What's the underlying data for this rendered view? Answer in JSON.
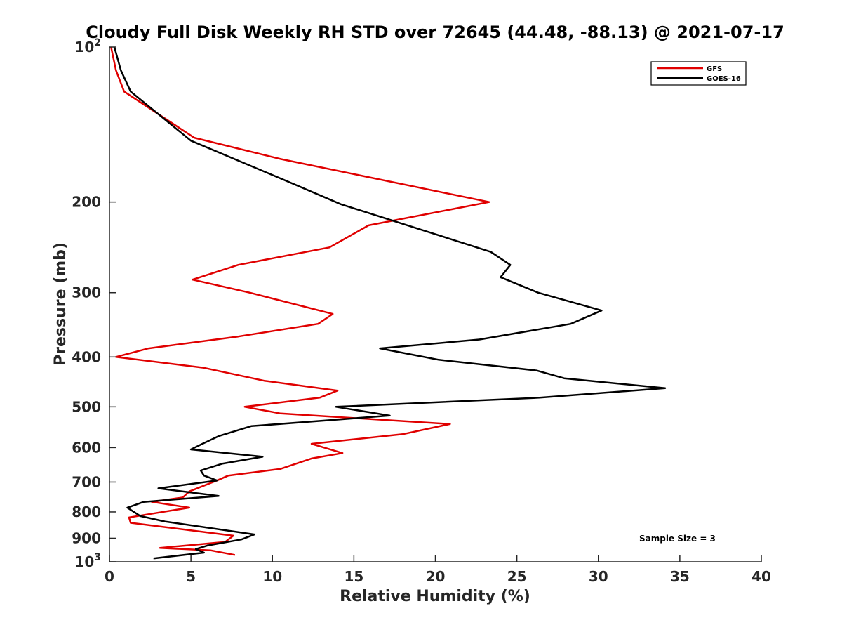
{
  "chart_data": {
    "type": "line",
    "title": "Cloudy Full Disk Weekly RH STD over 72645 (44.48, -88.13) @ 2021-07-17",
    "xlabel": "Relative Humidity (%)",
    "ylabel": "Pressure (mb)",
    "xlim": [
      0,
      40
    ],
    "ylim": [
      100,
      1000
    ],
    "yscale": "log",
    "y_reversed": true,
    "grid": false,
    "legend_position": "top-right",
    "x_ticks": [
      0,
      5,
      10,
      15,
      20,
      25,
      30,
      35,
      40
    ],
    "x_tick_labels": [
      "0",
      "5",
      "10",
      "15",
      "20",
      "25",
      "30",
      "35",
      "40"
    ],
    "y_ticks": [
      100,
      200,
      300,
      400,
      500,
      600,
      700,
      800,
      900,
      1000
    ],
    "y_tick_labels": [
      {
        "base": "10",
        "exp": "2"
      },
      {
        "base": "200",
        "exp": ""
      },
      {
        "base": "300",
        "exp": ""
      },
      {
        "base": "400",
        "exp": ""
      },
      {
        "base": "500",
        "exp": ""
      },
      {
        "base": "600",
        "exp": ""
      },
      {
        "base": "700",
        "exp": ""
      },
      {
        "base": "800",
        "exp": ""
      },
      {
        "base": "900",
        "exp": ""
      },
      {
        "base": "10",
        "exp": "3"
      }
    ],
    "annotation": "Sample Size = 3",
    "series": [
      {
        "name": "GFS",
        "color": "#e00000",
        "x": [
          0.1,
          0.4,
          0.9,
          5.2,
          10.5,
          23.3,
          15.9,
          13.5,
          7.9,
          5.1,
          8.6,
          13.7,
          12.8,
          7.9,
          2.4,
          0.4,
          5.8,
          9.5,
          14.0,
          12.9,
          8.3,
          10.5,
          20.9,
          18.0,
          12.4,
          14.3,
          12.4,
          10.5,
          7.3,
          6.6,
          4.9,
          4.5,
          2.6,
          4.9,
          1.2,
          1.3,
          7.6,
          7.1,
          3.1,
          6.2,
          7.7
        ],
        "y": [
          100,
          111,
          122,
          150,
          165,
          200,
          222,
          245,
          265,
          283,
          300,
          330,
          345,
          365,
          385,
          400,
          420,
          445,
          465,
          480,
          500,
          515,
          540,
          565,
          590,
          615,
          630,
          660,
          680,
          695,
          730,
          750,
          765,
          785,
          820,
          840,
          890,
          915,
          940,
          950,
          970
        ]
      },
      {
        "name": "GOES-16",
        "color": "#000000",
        "x": [
          0.3,
          0.7,
          1.3,
          5.0,
          10.5,
          14.2,
          19.8,
          23.4,
          24.6,
          24.0,
          26.3,
          30.2,
          28.3,
          22.7,
          16.6,
          20.2,
          26.2,
          27.9,
          34.1,
          26.4,
          13.9,
          17.2,
          8.7,
          6.7,
          5.7,
          5.0,
          9.4,
          6.9,
          5.6,
          5.8,
          6.6,
          3.0,
          6.7,
          2.1,
          1.1,
          1.9,
          3.4,
          8.9,
          8.1,
          6.0,
          5.3,
          5.8,
          2.7
        ],
        "y": [
          100,
          111,
          122,
          152,
          180,
          202,
          230,
          250,
          265,
          280,
          300,
          325,
          345,
          370,
          385,
          405,
          425,
          440,
          460,
          480,
          500,
          520,
          545,
          570,
          590,
          605,
          625,
          645,
          665,
          680,
          695,
          720,
          745,
          765,
          785,
          815,
          835,
          885,
          905,
          930,
          945,
          960,
          985
        ]
      }
    ]
  }
}
